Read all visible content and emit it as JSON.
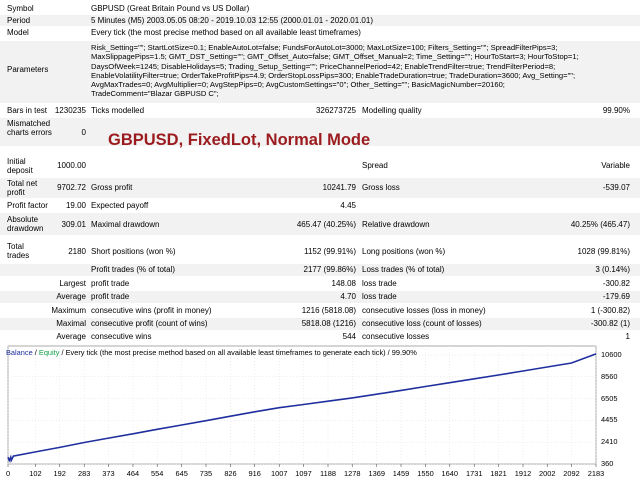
{
  "report": {
    "symbol_label": "Symbol",
    "symbol_value": "GBPUSD (Great Britain Pound vs US Dollar)",
    "period_label": "Period",
    "period_value": "5 Minutes (M5) 2003.05.05 08:20 - 2019.10.03 12:55 (2000.01.01 - 2020.01.01)",
    "model_label": "Model",
    "model_value": "Every tick (the most precise method based on all available least timeframes)",
    "parameters_label": "Parameters",
    "parameters_lines": [
      "Risk_Setting=\"\"; StartLotSize=0.1; EnableAutoLot=false; FundsForAutoLot=3000; MaxLotSize=100; Filters_Setting=\"\"; SpreadFilterPips=3;",
      "MaxSlippagePips=1.5; GMT_DST_Setting=\"\"; GMT_Offset_Auto=false; GMT_Offset_Manual=2; Time_Setting=\"\"; HourToStart=3; HourToStop=1;",
      "DaysOfWeek=1245; DisableHolidays=5; Trading_Setup_Setting=\"\"; PriceChannelPeriod=42; EnableTrendFilter=true; TrendFilterPeriod=8;",
      "EnableVolatilityFilter=true; OrderTakeProfitPips=4.9; OrderStopLossPips=300; EnableTradeDuration=true; TradeDuration=3600; Avg_Setting=\"\";",
      "AvgMaxTrades=0; AvgMultiplier=0; AvgStepPips=0; AvgCustomSettings=\"0\"; Other_Setting=\"\"; BasicMagicNumber=20160;",
      "TradeComment=\"Blazar GBPUSD C\";"
    ],
    "bars_label": "Bars in test",
    "bars_value": "1230235",
    "ticks_label": "Ticks modelled",
    "ticks_value": "326273725",
    "quality_label": "Modelling quality",
    "quality_value": "99.90%",
    "mismatched_label": "Mismatched charts errors",
    "mismatched_value": "0",
    "initial_deposit_label": "Initial deposit",
    "initial_deposit_value": "1000.00",
    "spread_label": "Spread",
    "spread_value": "Variable",
    "total_net_label": "Total net profit",
    "total_net_value": "9702.72",
    "gross_profit_label": "Gross profit",
    "gross_profit_value": "10241.79",
    "gross_loss_label": "Gross loss",
    "gross_loss_value": "-539.07",
    "profit_factor_label": "Profit factor",
    "profit_factor_value": "19.00",
    "expected_payoff_label": "Expected payoff",
    "expected_payoff_value": "4.45",
    "abs_dd_label": "Absolute drawdown",
    "abs_dd_value": "309.01",
    "max_dd_label": "Maximal drawdown",
    "max_dd_value": "465.47 (40.25%)",
    "rel_dd_label": "Relative drawdown",
    "rel_dd_value": "40.25% (465.47)",
    "total_trades_label": "Total trades",
    "total_trades_value": "2180",
    "short_label": "Short positions (won %)",
    "short_value": "1152 (99.91%)",
    "long_label": "Long positions (won %)",
    "long_value": "1028 (99.81%)",
    "profit_trades_label": "Profit trades (% of total)",
    "profit_trades_value": "2177 (99.86%)",
    "loss_trades_label": "Loss trades (% of total)",
    "loss_trades_value": "3 (0.14%)",
    "largest_label": "Largest",
    "largest_profit_label": "profit trade",
    "largest_profit_value": "148.08",
    "largest_loss_label": "loss trade",
    "largest_loss_value": "-300.82",
    "average_label": "Average",
    "average_profit_label": "profit trade",
    "average_profit_value": "4.70",
    "average_loss_label": "loss trade",
    "average_loss_value": "-179.69",
    "maximum_label": "Maximum",
    "max_cons_wins_label": "consecutive wins (profit in money)",
    "max_cons_wins_value": "1216 (5818.08)",
    "max_cons_losses_label": "consecutive losses (loss in money)",
    "max_cons_losses_value": "1 (-300.82)",
    "maximal_label": "Maximal",
    "maximal_profit_label": "consecutive profit (count of wins)",
    "maximal_profit_value": "5818.08 (1216)",
    "maximal_loss_label": "consecutive loss (count of losses)",
    "maximal_loss_value": "-300.82 (1)",
    "average2_label": "Average",
    "avg_cons_wins_label": "consecutive wins",
    "avg_cons_wins_value": "544",
    "avg_cons_losses_label": "consecutive losses",
    "avg_cons_losses_value": "1"
  },
  "overlay_title": "GBPUSD, FixedLot, Normal Mode",
  "chart_data": {
    "type": "line",
    "legend_balance": "Balance",
    "legend_sep": " / ",
    "legend_equity": "Equity",
    "legend_rest": " / Every tick (the most precise method based on all available least timeframes to generate each tick) / 99.90%",
    "y_ticks": [
      "10600",
      "8560",
      "6505",
      "4455",
      "2410",
      "360"
    ],
    "y_values": [
      10600,
      8560,
      6505,
      4455,
      2410,
      360
    ],
    "x_ticks": [
      "0",
      "102",
      "192",
      "283",
      "373",
      "464",
      "554",
      "645",
      "735",
      "826",
      "916",
      "1007",
      "1097",
      "1188",
      "1278",
      "1369",
      "1459",
      "1550",
      "1640",
      "1731",
      "1821",
      "1912",
      "2002",
      "2092",
      "2183"
    ],
    "ylim": [
      360,
      10600
    ],
    "xlim": [
      0,
      2183
    ],
    "series": [
      {
        "name": "Balance",
        "color": "#1f2f9e",
        "x": [
          0,
          5,
          10,
          12,
          20,
          102,
          192,
          283,
          373,
          464,
          554,
          645,
          735,
          826,
          916,
          1007,
          1097,
          1188,
          1278,
          1369,
          1459,
          1550,
          1640,
          1731,
          1821,
          1912,
          2002,
          2092,
          2183
        ],
        "y": [
          1000,
          700,
          1000,
          690,
          1100,
          1500,
          1920,
          2380,
          2790,
          3200,
          3620,
          4020,
          4430,
          4850,
          5260,
          5650,
          5950,
          6260,
          6570,
          6920,
          7270,
          7640,
          8000,
          8360,
          8720,
          9100,
          9470,
          9850,
          10700
        ]
      }
    ]
  }
}
